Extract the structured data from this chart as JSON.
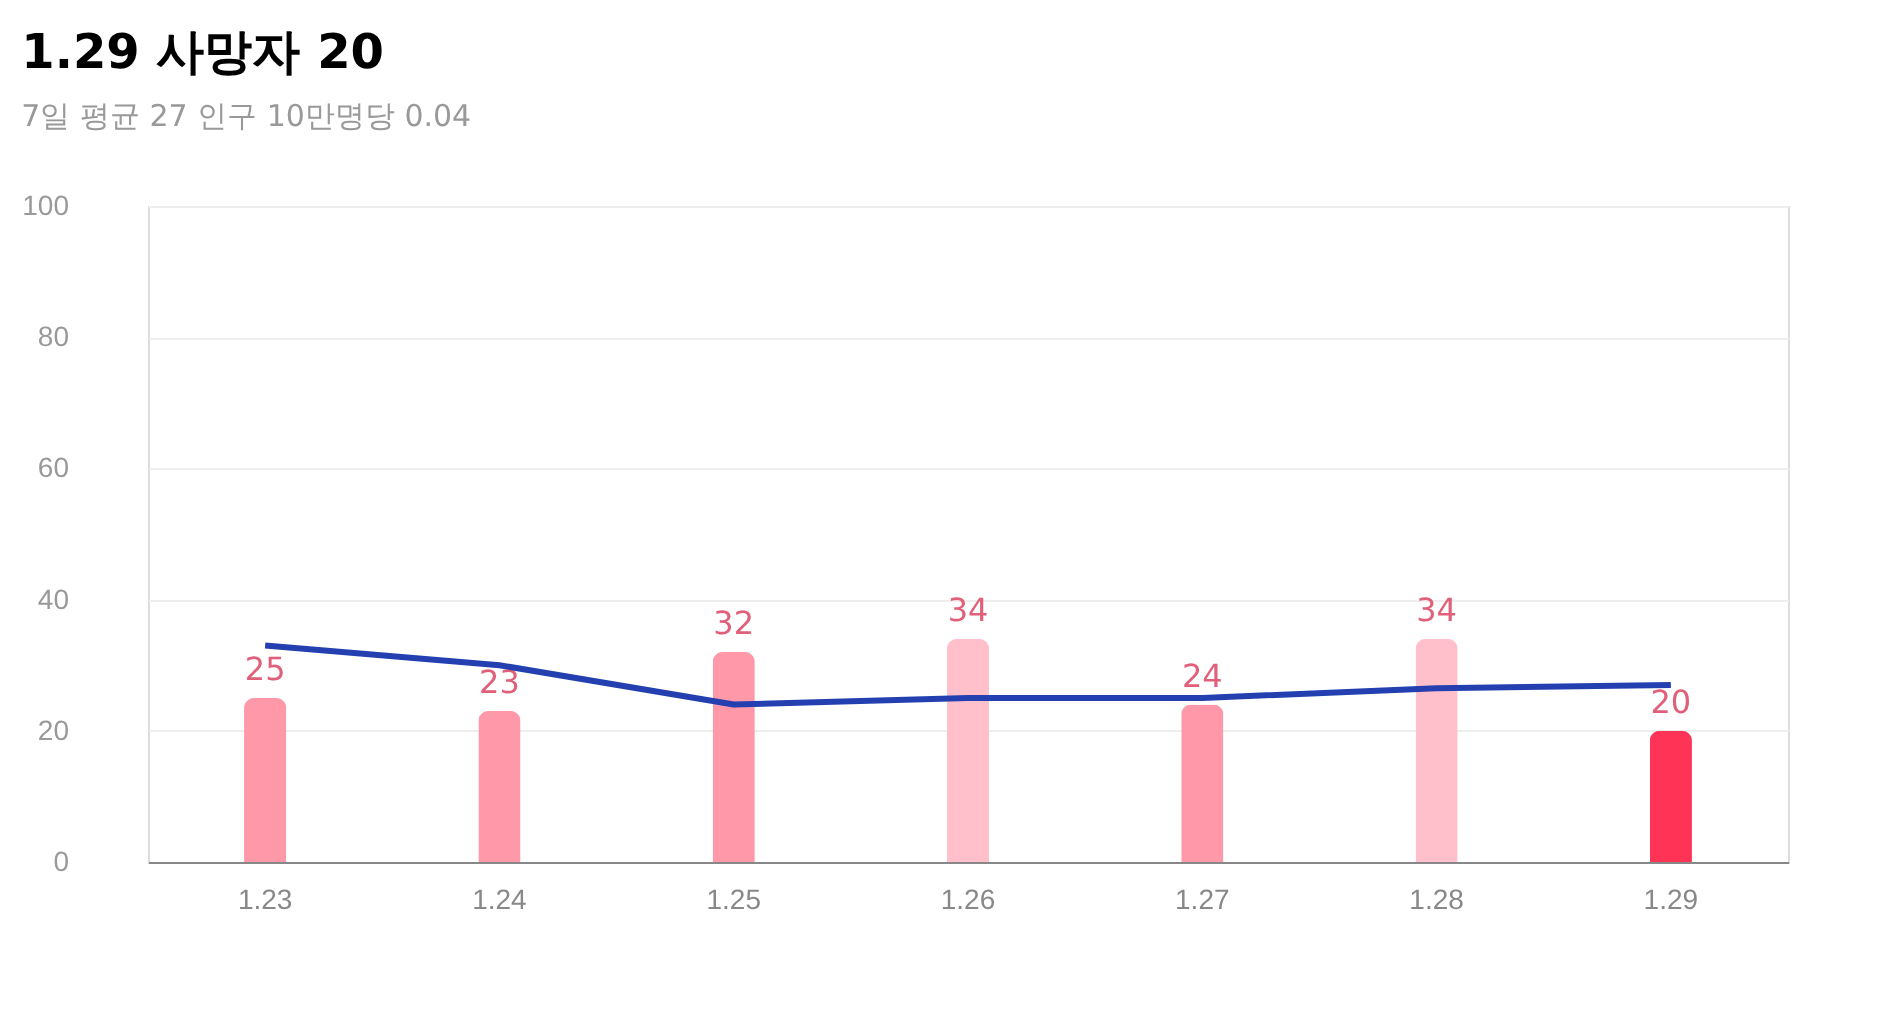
{
  "chart_data": {
    "type": "bar",
    "title": "1.29 사망자 20",
    "subtitle": "7일 평균 27  인구 10만명당 0.04",
    "categories": [
      "1.23",
      "1.24",
      "1.25",
      "1.26",
      "1.27",
      "1.28",
      "1.29"
    ],
    "series": [
      {
        "values": [
          25,
          23,
          32,
          34,
          24,
          34,
          20
        ],
        "value_labels": [
          "25",
          "23",
          "32",
          "34",
          "24",
          "34",
          "20"
        ],
        "colors": [
          "#ff98a8",
          "#ff98a8",
          "#ff98a8",
          "#ffc0cb",
          "#ff98a8",
          "#ffc0cb",
          "#ff3355"
        ]
      },
      {
        "type": "line",
        "color": "#2440b0",
        "values": [
          33,
          30,
          24,
          25,
          25,
          26.5,
          27
        ]
      }
    ],
    "ylim": [
      0,
      100
    ],
    "yticks": [
      0,
      20,
      40,
      60,
      80,
      100
    ],
    "grid": "y",
    "marker": "none",
    "line_style": "solid"
  }
}
